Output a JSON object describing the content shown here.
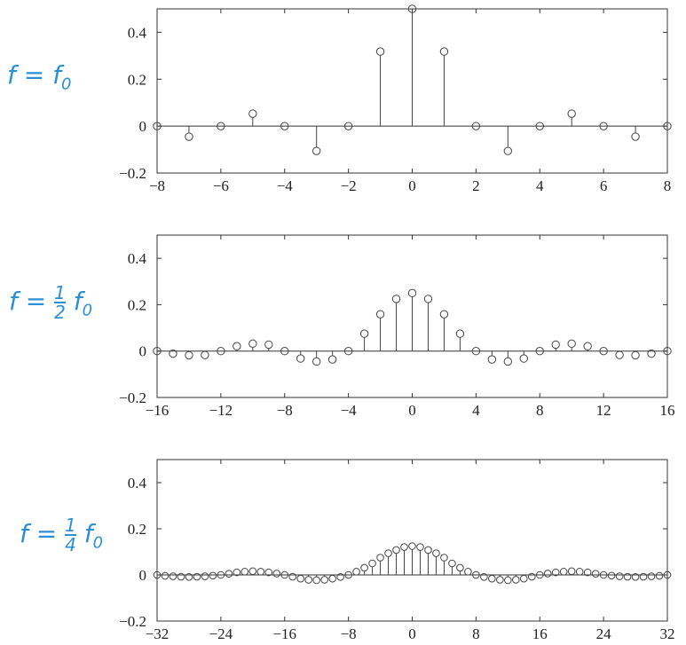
{
  "labels": [
    {
      "pre": "f = f",
      "num": "",
      "den": "",
      "sub": "0"
    },
    {
      "pre": "f =",
      "num": "1",
      "den": "2",
      "post": "f",
      "sub": "0"
    },
    {
      "pre": "f =",
      "num": "1",
      "den": "4",
      "post": "f",
      "sub": "0"
    }
  ],
  "colors": {
    "stem": "#444444",
    "axis": "#333333",
    "label": "#2a8fd6"
  },
  "chart_data": [
    {
      "type": "stem",
      "title": "",
      "xlabel": "",
      "ylabel": "",
      "xlim": [
        -8,
        8
      ],
      "ylim": [
        -0.2,
        0.5
      ],
      "xticks": [
        -8,
        -6,
        -4,
        -2,
        0,
        2,
        4,
        6,
        8
      ],
      "xtick_labels": [
        "−8",
        "−6",
        "−4",
        "−2",
        "0",
        "2",
        "4",
        "6",
        "8"
      ],
      "yticks": [
        -0.2,
        0,
        0.2,
        0.4
      ],
      "ytick_labels": [
        "−0.2",
        "0",
        "0.2",
        "0.4"
      ],
      "x": [
        -8,
        -7,
        -6,
        -5,
        -4,
        -3,
        -2,
        -1,
        0,
        1,
        2,
        3,
        4,
        5,
        6,
        7,
        8
      ],
      "y": [
        0,
        -0.045,
        0,
        0.053,
        0,
        -0.106,
        0,
        0.318,
        0.5,
        0.318,
        0,
        -0.106,
        0,
        0.053,
        0,
        -0.045,
        0
      ]
    },
    {
      "type": "stem",
      "title": "",
      "xlabel": "",
      "ylabel": "",
      "xlim": [
        -16,
        16
      ],
      "ylim": [
        -0.2,
        0.5
      ],
      "xticks": [
        -16,
        -12,
        -8,
        -4,
        0,
        4,
        8,
        12,
        16
      ],
      "xtick_labels": [
        "−16",
        "−12",
        "−8",
        "−4",
        "0",
        "4",
        "8",
        "12",
        "16"
      ],
      "yticks": [
        -0.2,
        0,
        0.2,
        0.4
      ],
      "ytick_labels": [
        "−0.2",
        "0",
        "0.2",
        "0.4"
      ],
      "x": [
        -16,
        -15,
        -14,
        -13,
        -12,
        -11,
        -10,
        -9,
        -8,
        -7,
        -6,
        -5,
        -4,
        -3,
        -2,
        -1,
        0,
        1,
        2,
        3,
        4,
        5,
        6,
        7,
        8,
        9,
        10,
        11,
        12,
        13,
        14,
        15,
        16
      ],
      "y": [
        0,
        -0.011,
        -0.018,
        -0.017,
        0,
        0.021,
        0.032,
        0.028,
        0,
        -0.032,
        -0.045,
        -0.036,
        0,
        0.075,
        0.159,
        0.225,
        0.25,
        0.225,
        0.159,
        0.075,
        0,
        -0.036,
        -0.045,
        -0.032,
        0,
        0.028,
        0.032,
        0.021,
        0,
        -0.017,
        -0.018,
        -0.011,
        0
      ]
    },
    {
      "type": "stem",
      "title": "",
      "xlabel": "",
      "ylabel": "",
      "xlim": [
        -32,
        32
      ],
      "ylim": [
        -0.2,
        0.5
      ],
      "xticks": [
        -32,
        -24,
        -16,
        -8,
        0,
        8,
        16,
        24,
        32
      ],
      "xtick_labels": [
        "−32",
        "−24",
        "−16",
        "−8",
        "0",
        "8",
        "16",
        "24",
        "32"
      ],
      "yticks": [
        -0.2,
        0,
        0.2,
        0.4
      ],
      "ytick_labels": [
        "−0.2",
        "0",
        "0.2",
        "0.4"
      ],
      "x": [
        -32,
        -31,
        -30,
        -29,
        -28,
        -27,
        -26,
        -25,
        -24,
        -23,
        -22,
        -21,
        -20,
        -19,
        -18,
        -17,
        -16,
        -15,
        -14,
        -13,
        -12,
        -11,
        -10,
        -9,
        -8,
        -7,
        -6,
        -5,
        -4,
        -3,
        -2,
        -1,
        0,
        1,
        2,
        3,
        4,
        5,
        6,
        7,
        8,
        9,
        10,
        11,
        12,
        13,
        14,
        15,
        16,
        17,
        18,
        19,
        20,
        21,
        22,
        23,
        24,
        25,
        26,
        27,
        28,
        29,
        30,
        31,
        32
      ],
      "y": [
        0,
        -0.004,
        -0.006,
        -0.008,
        -0.009,
        -0.008,
        -0.006,
        -0.003,
        0,
        0.005,
        0.011,
        0.014,
        0.016,
        0.014,
        0.011,
        0.006,
        0,
        -0.008,
        -0.016,
        -0.021,
        -0.023,
        -0.021,
        -0.016,
        -0.009,
        0,
        0.014,
        0.031,
        0.05,
        0.075,
        0.094,
        0.108,
        0.121,
        0.125,
        0.121,
        0.108,
        0.094,
        0.075,
        0.05,
        0.031,
        0.014,
        0,
        -0.009,
        -0.016,
        -0.021,
        -0.023,
        -0.021,
        -0.016,
        -0.008,
        0,
        0.006,
        0.011,
        0.014,
        0.016,
        0.014,
        0.011,
        0.005,
        0,
        -0.003,
        -0.006,
        -0.008,
        -0.009,
        -0.008,
        -0.006,
        -0.004,
        0
      ]
    }
  ]
}
